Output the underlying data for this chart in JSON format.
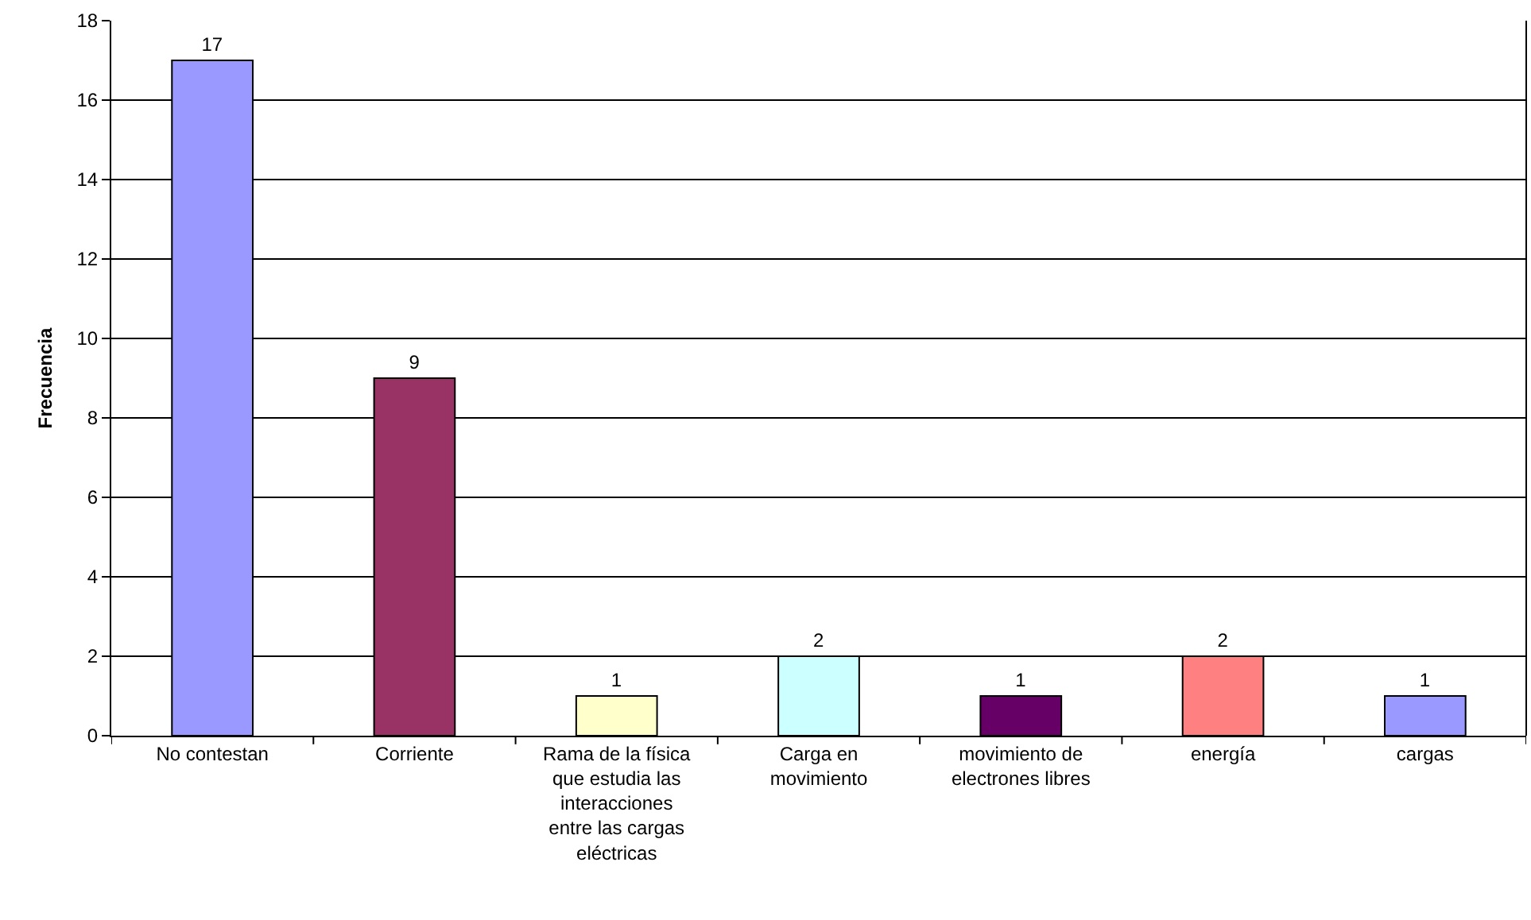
{
  "chart_data": {
    "type": "bar",
    "ylabel": "Frecuencia",
    "categories": [
      "No contestan",
      "Corriente",
      "Rama de la física que estudia las interacciones entre las cargas eléctricas",
      "Carga en movimiento",
      "movimiento de electrones libres",
      "energía",
      "cargas"
    ],
    "values": [
      17,
      9,
      1,
      2,
      1,
      2,
      1
    ],
    "colors": [
      "#9999ff",
      "#993366",
      "#ffffcc",
      "#ccffff",
      "#660066",
      "#ff8080",
      "#9999ff"
    ],
    "ylim": [
      0,
      18
    ],
    "yticks": [
      0,
      2,
      4,
      6,
      8,
      10,
      12,
      14,
      16,
      18
    ],
    "grid": "y",
    "data_labels": true
  }
}
